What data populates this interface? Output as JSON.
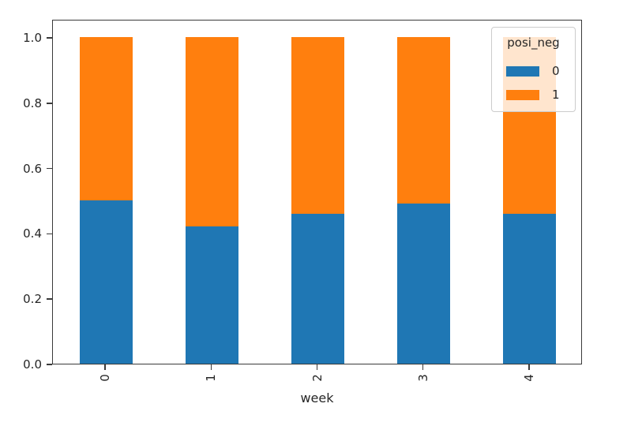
{
  "chart_data": {
    "type": "bar",
    "stacked": true,
    "title": "",
    "xlabel": "week",
    "ylabel": "",
    "categories": [
      "0",
      "1",
      "2",
      "3",
      "4"
    ],
    "series": [
      {
        "name": "0",
        "color": "#1f77b4",
        "values": [
          0.5,
          0.42,
          0.46,
          0.49,
          0.46
        ]
      },
      {
        "name": "1",
        "color": "#ff7f0e",
        "values": [
          0.5,
          0.58,
          0.54,
          0.51,
          0.54
        ]
      }
    ],
    "ylim": [
      0,
      1.056
    ],
    "ytick_values": [
      0.0,
      0.2,
      0.4,
      0.6,
      0.8,
      1.0
    ],
    "ytick_labels": [
      "0.0",
      "0.2",
      "0.4",
      "0.6",
      "0.8",
      "1.0"
    ],
    "legend": {
      "title": "posi_neg",
      "position": "upper right",
      "entries": [
        "0",
        "1"
      ]
    },
    "grid": false,
    "colors": {
      "bar_blue": "#1f77b4",
      "bar_orange": "#ff7f0e",
      "spine": "#3a3a3a",
      "text": "#262626"
    }
  }
}
